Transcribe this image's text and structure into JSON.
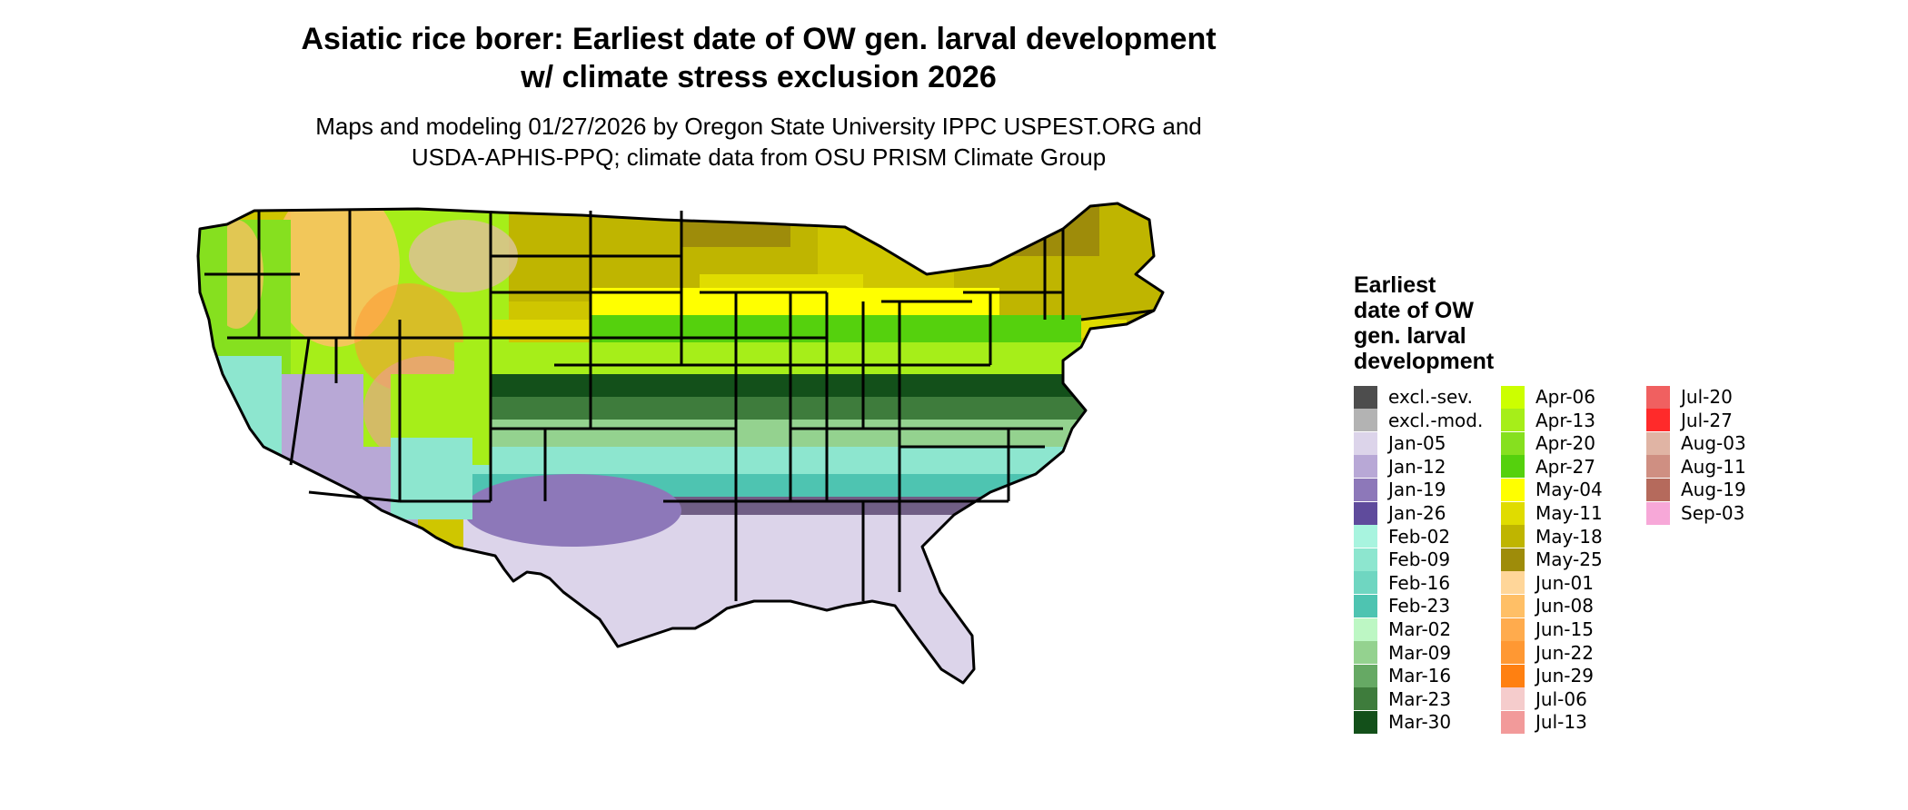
{
  "title_line1": "Asiatic rice borer: Earliest date of OW gen. larval development",
  "title_line2": "w/ climate stress exclusion 2026",
  "subtitle_line1": "Maps and modeling 01/27/2026 by Oregon State University IPPC USPEST.ORG and",
  "subtitle_line2": "USDA-APHIS-PPQ; climate data from OSU PRISM Climate Group",
  "legend": {
    "title_lines": [
      "Earliest",
      "date of OW",
      "gen. larval",
      "development"
    ],
    "items": [
      {
        "label": "excl.-sev.",
        "color": "#4d4d4d"
      },
      {
        "label": "excl.-mod.",
        "color": "#b3b3b3"
      },
      {
        "label": "Jan-05",
        "color": "#dcd4ea"
      },
      {
        "label": "Jan-12",
        "color": "#b8a8d6"
      },
      {
        "label": "Jan-19",
        "color": "#8d78b9"
      },
      {
        "label": "Jan-26",
        "color": "#5f4b9c"
      },
      {
        "label": "Feb-02",
        "color": "#a8f4df"
      },
      {
        "label": "Feb-09",
        "color": "#8de6cf"
      },
      {
        "label": "Feb-16",
        "color": "#6fd6c1"
      },
      {
        "label": "Feb-23",
        "color": "#4ec4b1"
      },
      {
        "label": "Mar-02",
        "color": "#bdf7c4"
      },
      {
        "label": "Mar-09",
        "color": "#94d28f"
      },
      {
        "label": "Mar-16",
        "color": "#66a964"
      },
      {
        "label": "Mar-23",
        "color": "#3e7c3c"
      },
      {
        "label": "Mar-30",
        "color": "#13501a"
      },
      {
        "label": "Apr-06",
        "color": "#ccff00"
      },
      {
        "label": "Apr-13",
        "color": "#a6ee19"
      },
      {
        "label": "Apr-20",
        "color": "#86e01f"
      },
      {
        "label": "Apr-27",
        "color": "#55d10d"
      },
      {
        "label": "May-04",
        "color": "#ffff00"
      },
      {
        "label": "May-11",
        "color": "#e0dc00"
      },
      {
        "label": "May-18",
        "color": "#bfb500"
      },
      {
        "label": "May-25",
        "color": "#9e8c0a"
      },
      {
        "label": "Jun-01",
        "color": "#ffd699"
      },
      {
        "label": "Jun-08",
        "color": "#ffbf66"
      },
      {
        "label": "Jun-15",
        "color": "#ffab4d"
      },
      {
        "label": "Jun-22",
        "color": "#ff9833"
      },
      {
        "label": "Jun-29",
        "color": "#ff8011"
      },
      {
        "label": "Jul-06",
        "color": "#f5cccc"
      },
      {
        "label": "Jul-13",
        "color": "#f29a9a"
      },
      {
        "label": "Jul-20",
        "color": "#f06060"
      },
      {
        "label": "Jul-27",
        "color": "#ff2a2a"
      },
      {
        "label": "Aug-03",
        "color": "#e0b4a4"
      },
      {
        "label": "Aug-11",
        "color": "#cf8f82"
      },
      {
        "label": "Aug-19",
        "color": "#b56a5c"
      },
      {
        "label": "Sep-03",
        "color": "#f7a8d8"
      }
    ]
  }
}
